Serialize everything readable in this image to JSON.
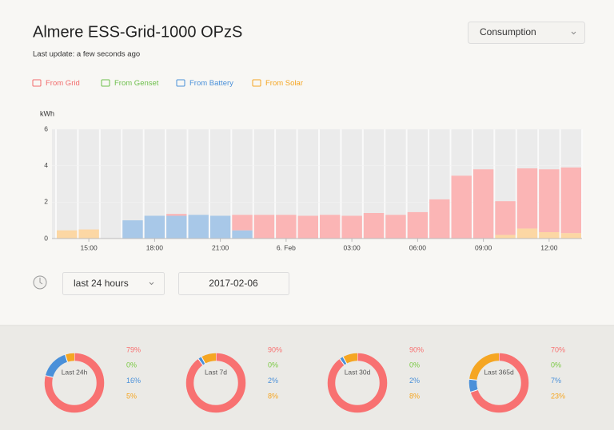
{
  "header": {
    "title": "Almere ESS-Grid-1000 OPzS",
    "subtitle": "Last update: a few seconds ago",
    "view_select": "Consumption"
  },
  "chart_data": {
    "type": "bar",
    "stacked": true,
    "y_label": "kWh",
    "categories": [
      null,
      "15:00",
      null,
      null,
      "18:00",
      null,
      null,
      "21:00",
      null,
      null,
      "6. Feb",
      null,
      null,
      "03:00",
      null,
      null,
      "06:00",
      null,
      null,
      "09:00",
      null,
      null,
      "12:00",
      null
    ],
    "series": [
      {
        "name": "From Solar",
        "color": "#fcd7a4",
        "text_color": "#f5a623",
        "values": [
          0.45,
          0.5,
          0,
          0,
          0,
          0,
          0,
          0,
          0,
          0,
          0,
          0,
          0,
          0,
          0,
          0,
          0,
          0,
          0,
          0,
          0.2,
          0.55,
          0.35,
          0.3
        ]
      },
      {
        "name": "From Genset",
        "color": "#b6e0a0",
        "text_color": "#6cbf4a",
        "values": [
          0,
          0,
          0,
          0,
          0,
          0,
          0,
          0,
          0,
          0,
          0,
          0,
          0,
          0,
          0,
          0,
          0,
          0,
          0,
          0,
          0,
          0,
          0,
          0
        ]
      },
      {
        "name": "From Battery",
        "color": "#a8c8e8",
        "text_color": "#4a90d9",
        "values": [
          0,
          0,
          0,
          1.0,
          1.25,
          1.25,
          1.3,
          1.25,
          0.45,
          0,
          0,
          0,
          0,
          0,
          0,
          0,
          0,
          0,
          0,
          0,
          0,
          0,
          0,
          0
        ]
      },
      {
        "name": "From Grid",
        "color": "#fbb5b5",
        "text_color": "#f26b6b",
        "values": [
          0,
          0,
          0,
          0,
          0,
          0.1,
          0,
          0,
          0.85,
          1.3,
          1.3,
          1.25,
          1.3,
          1.25,
          1.4,
          1.3,
          1.45,
          2.15,
          3.45,
          3.8,
          1.85,
          3.3,
          3.45,
          3.6
        ]
      }
    ],
    "ylim": [
      0,
      6
    ],
    "yticks": [
      0,
      2,
      4,
      6
    ],
    "grid": true
  },
  "controls": {
    "range": "last 24 hours",
    "date": "2017-02-06"
  },
  "donut_colors": [
    "#f87171",
    "#7ac943",
    "#4a90d9",
    "#f5a623"
  ],
  "donuts": [
    {
      "label": "Last 24h",
      "values": [
        79,
        0,
        16,
        5
      ],
      "value_labels": [
        "79%",
        "0%",
        "16%",
        "5%"
      ]
    },
    {
      "label": "Last 7d",
      "values": [
        90,
        0,
        2,
        8
      ],
      "value_labels": [
        "90%",
        "0%",
        "2%",
        "8%"
      ]
    },
    {
      "label": "Last 30d",
      "values": [
        90,
        0,
        2,
        8
      ],
      "value_labels": [
        "90%",
        "0%",
        "2%",
        "8%"
      ]
    },
    {
      "label": "Last 365d",
      "values": [
        70,
        0,
        7,
        23
      ],
      "value_labels": [
        "70%",
        "0%",
        "7%",
        "23%"
      ]
    }
  ]
}
